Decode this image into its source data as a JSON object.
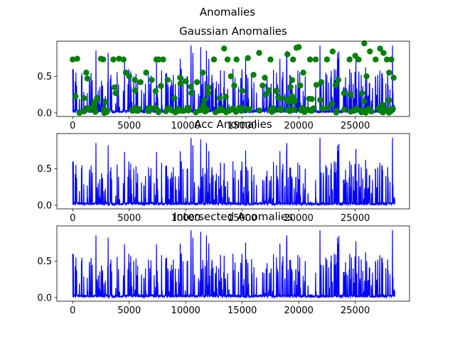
{
  "suptitle": "Anomalies",
  "colors": {
    "line": "#0000ff",
    "marker": "#008000"
  },
  "chart_data": [
    {
      "type": "line",
      "title": "Gaussian Anomalies",
      "xlim": [
        -1400,
        29800
      ],
      "ylim": [
        -0.05,
        0.98
      ],
      "xticks": [
        0,
        5000,
        10000,
        15000,
        20000,
        25000
      ],
      "yticks": [
        0.0,
        0.5
      ],
      "series": [
        {
          "type": "line",
          "color": "#0000ff",
          "x_range": [
            0,
            28500
          ],
          "y_range": [
            0,
            0.95
          ]
        }
      ],
      "markers": {
        "color": "#008000",
        "points": [
          [
            0,
            0.73
          ],
          [
            400,
            0.74
          ],
          [
            600,
            0.0
          ],
          [
            1000,
            0.02
          ],
          [
            1200,
            0.55
          ],
          [
            1300,
            0.47
          ],
          [
            1500,
            0.05
          ],
          [
            2500,
            0.74
          ],
          [
            2700,
            0.73
          ],
          [
            2800,
            0.0
          ],
          [
            3600,
            0.73
          ],
          [
            3700,
            0.35
          ],
          [
            3800,
            0.27
          ],
          [
            4100,
            0.74
          ],
          [
            4500,
            0.73
          ],
          [
            4700,
            0.55
          ],
          [
            5000,
            0.5
          ],
          [
            5500,
            0.45
          ],
          [
            6000,
            0.42
          ],
          [
            6500,
            0.55
          ],
          [
            7000,
            0.45
          ],
          [
            7400,
            0.73
          ],
          [
            7600,
            0.73
          ],
          [
            8000,
            0.73
          ],
          [
            8400,
            0.45
          ],
          [
            9000,
            0.2
          ],
          [
            9500,
            0.48
          ],
          [
            10500,
            0.27
          ],
          [
            11000,
            0.42
          ],
          [
            11500,
            0.55
          ],
          [
            12000,
            0.27
          ],
          [
            12500,
            0.73
          ],
          [
            13000,
            0.2
          ],
          [
            13400,
            0.88
          ],
          [
            13700,
            0.73
          ],
          [
            14000,
            0.5
          ],
          [
            14500,
            0.73
          ],
          [
            15000,
            0.3
          ],
          [
            15500,
            0.75
          ],
          [
            16000,
            0.52
          ],
          [
            16500,
            0.82
          ],
          [
            17000,
            0.48
          ],
          [
            17500,
            0.73
          ],
          [
            18000,
            0.3
          ],
          [
            18500,
            0.2
          ],
          [
            19000,
            0.8
          ],
          [
            19500,
            0.73
          ],
          [
            19800,
            0.89
          ],
          [
            20000,
            0.9
          ],
          [
            20400,
            0.55
          ],
          [
            21000,
            0.73
          ],
          [
            21500,
            0.73
          ],
          [
            22000,
            0.42
          ],
          [
            22500,
            0.73
          ],
          [
            23000,
            0.84
          ],
          [
            23500,
            0.45
          ],
          [
            24000,
            0.27
          ],
          [
            24500,
            0.73
          ],
          [
            25000,
            0.78
          ],
          [
            25300,
            0.73
          ],
          [
            25600,
            0.27
          ],
          [
            25800,
            0.95
          ],
          [
            26000,
            0.5
          ],
          [
            26300,
            0.84
          ],
          [
            26800,
            0.73
          ],
          [
            27200,
            0.88
          ],
          [
            27500,
            0.82
          ],
          [
            27800,
            0.73
          ],
          [
            28000,
            0.55
          ],
          [
            28200,
            0.73
          ],
          [
            28400,
            0.48
          ]
        ]
      }
    },
    {
      "type": "line",
      "title": "Acc Anomalies",
      "xlim": [
        -1400,
        29800
      ],
      "ylim": [
        -0.05,
        0.98
      ],
      "xticks": [
        0,
        5000,
        10000,
        15000,
        20000,
        25000
      ],
      "yticks": [
        0.0,
        0.5
      ],
      "series": [
        {
          "type": "line",
          "color": "#0000ff",
          "x_range": [
            0,
            28500
          ],
          "y_range": [
            0,
            0.95
          ]
        }
      ]
    },
    {
      "type": "line",
      "title": "Intersected Anomalies",
      "xlim": [
        -1400,
        29800
      ],
      "ylim": [
        -0.05,
        0.98
      ],
      "xticks": [
        0,
        5000,
        10000,
        15000,
        20000,
        25000
      ],
      "yticks": [
        0.0,
        0.5
      ],
      "series": [
        {
          "type": "line",
          "color": "#0000ff",
          "x_range": [
            0,
            28500
          ],
          "y_range": [
            0,
            0.95
          ]
        }
      ]
    }
  ]
}
